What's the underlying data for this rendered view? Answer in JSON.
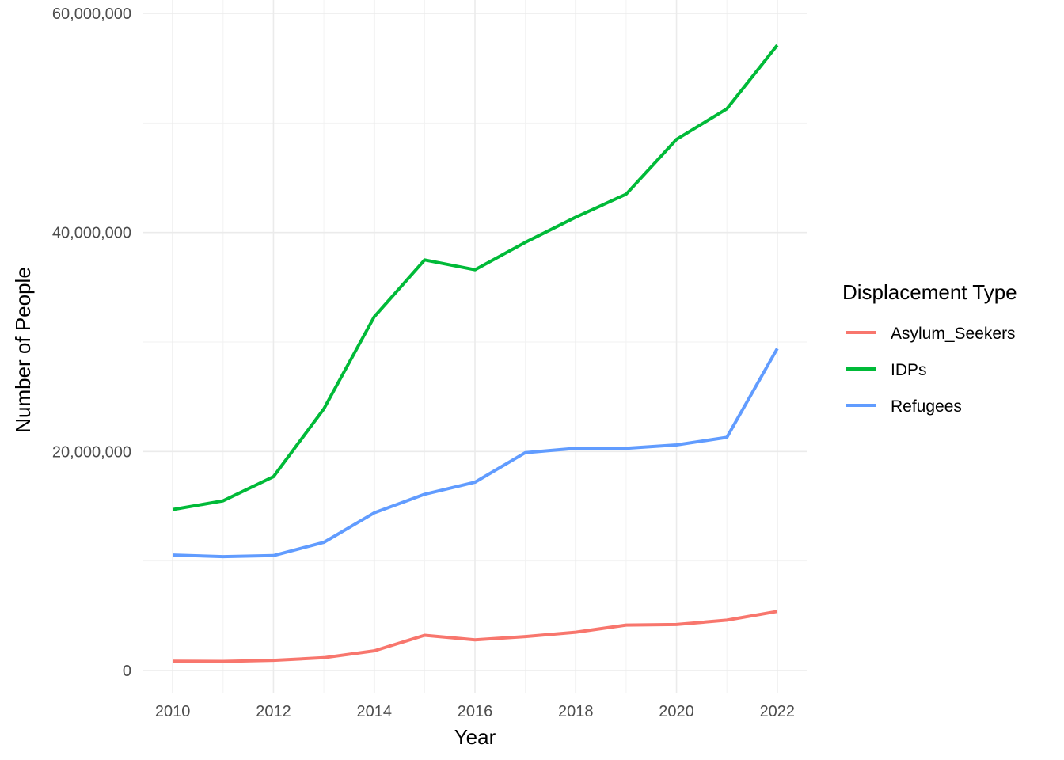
{
  "chart_data": {
    "type": "line",
    "title": "",
    "xlabel": "Year",
    "ylabel": "Number of People",
    "x": [
      2010,
      2011,
      2012,
      2013,
      2014,
      2015,
      2016,
      2017,
      2018,
      2019,
      2020,
      2021,
      2022
    ],
    "xlim": [
      2009.4,
      2022.6
    ],
    "ylim": [
      -2000000,
      60000000
    ],
    "x_ticks": [
      2010,
      2012,
      2014,
      2016,
      2018,
      2020,
      2022
    ],
    "x_tick_labels": [
      "2010",
      "2012",
      "2014",
      "2016",
      "2018",
      "2020",
      "2022"
    ],
    "y_ticks": [
      0,
      20000000,
      40000000,
      60000000
    ],
    "y_tick_labels": [
      "0",
      "20,000,000",
      "40,000,000",
      "60,000,000"
    ],
    "y_minor_ticks": [
      10000000,
      30000000,
      50000000
    ],
    "grid": true,
    "legend": {
      "title": "Displacement Type",
      "position": "right"
    },
    "series": [
      {
        "name": "Asylum_Seekers",
        "color": "#F8766D",
        "values": [
          850000,
          830000,
          930000,
          1170000,
          1800000,
          3220000,
          2800000,
          3100000,
          3500000,
          4150000,
          4200000,
          4600000,
          5400000
        ]
      },
      {
        "name": "IDPs",
        "color": "#00BA38",
        "values": [
          14700000,
          15500000,
          17700000,
          23900000,
          32300000,
          37500000,
          36600000,
          39100000,
          41400000,
          43500000,
          48500000,
          51300000,
          57100000
        ]
      },
      {
        "name": "Refugees",
        "color": "#619CFF",
        "values": [
          10550000,
          10400000,
          10500000,
          11700000,
          14400000,
          16100000,
          17200000,
          19900000,
          20300000,
          20300000,
          20600000,
          21300000,
          29400000
        ]
      }
    ]
  }
}
